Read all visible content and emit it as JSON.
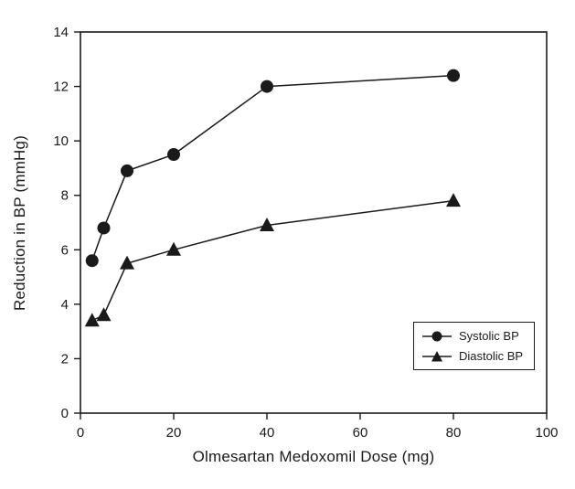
{
  "chart_data": {
    "type": "line",
    "title": "",
    "xlabel": "Olmesartan Medoxomil Dose (mg)",
    "ylabel": "Reduction in BP (mmHg)",
    "xlim": [
      0,
      100
    ],
    "ylim": [
      0,
      14
    ],
    "xticks": [
      0,
      20,
      40,
      60,
      80,
      100
    ],
    "yticks": [
      0,
      2,
      4,
      6,
      8,
      10,
      12,
      14
    ],
    "x": [
      2.5,
      5,
      10,
      20,
      40,
      80
    ],
    "series": [
      {
        "name": "Systolic BP",
        "marker": "circle",
        "values": [
          5.6,
          6.8,
          8.9,
          9.5,
          12.0,
          12.4
        ]
      },
      {
        "name": "Diastolic BP",
        "marker": "triangle",
        "values": [
          3.4,
          3.6,
          5.5,
          6.0,
          6.9,
          7.8
        ]
      }
    ],
    "legend_position": "lower right",
    "grid": false,
    "line_color": "#1a1a1a",
    "background_color": "#ffffff"
  }
}
